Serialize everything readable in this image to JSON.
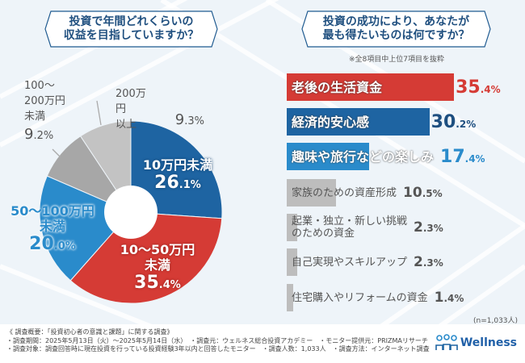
{
  "left_question": {
    "line1": "投資で年間どれくらいの",
    "line2": "収益を目指していますか？"
  },
  "right_question": {
    "line1": "投資の成功により、あなたが",
    "line2": "最も得たいものは何ですか？"
  },
  "right_note": "※全8項目中上位7項目を抜粋",
  "sample_size": "(n=1,033人)",
  "chart_data": [
    {
      "type": "pie",
      "donut": true,
      "start": "12 o'clock",
      "direction": "clockwise",
      "slices": [
        {
          "label_lines": [
            "10万円未満"
          ],
          "value": 26.1,
          "pct_int": "26",
          "pct_dec": ".1%",
          "color": "#1e64a2"
        },
        {
          "label_lines": [
            "10～50万円",
            "未満"
          ],
          "value": 35.4,
          "pct_int": "35",
          "pct_dec": ".4%",
          "color": "#d53b35"
        },
        {
          "label_lines": [
            "50～100万円",
            "未満"
          ],
          "value": 20.0,
          "pct_int": "20",
          "pct_dec": ".0%",
          "color": "#2a8bcb"
        },
        {
          "label_lines": [
            "100～",
            "200万円",
            "未満"
          ],
          "value": 9.2,
          "pct_int": "9",
          "pct_dec": ".2%",
          "color": "#a7a7a7"
        },
        {
          "label_lines": [
            "200万円",
            "以上"
          ],
          "value": 9.3,
          "pct_int": "9",
          "pct_dec": ".3%",
          "color": "#c3c3c3"
        }
      ]
    },
    {
      "type": "bar",
      "orientation": "horizontal",
      "categories": [
        "老後の生活資金",
        "経済的安心感",
        "趣味や旅行などの楽しみ",
        "家族のための資産形成",
        "起業・独立・新しい挑戦のための資金",
        "自己実現やスキルアップ",
        "住宅購入やリフォームの資金"
      ],
      "label_lines": [
        [
          "老後の生活資金"
        ],
        [
          "経済的安心感"
        ],
        [
          "趣味や旅行などの楽しみ"
        ],
        [
          "家族のための資産形成"
        ],
        [
          "起業・独立・新しい挑戦",
          "のための資金"
        ],
        [
          "自己実現やスキルアップ"
        ],
        [
          "住宅購入やリフォームの資金"
        ]
      ],
      "values": [
        35.4,
        30.2,
        17.4,
        10.5,
        2.3,
        2.3,
        1.4
      ],
      "value_int": [
        "35",
        "30",
        "17",
        "10",
        "2",
        "2",
        "1"
      ],
      "value_dec": [
        ".4%",
        ".2%",
        ".4%",
        ".5%",
        ".3%",
        ".3%",
        ".4%"
      ],
      "colors": [
        "#d53b35",
        "#1e64a2",
        "#2a8bcb",
        "#bdbdbd",
        "#bdbdbd",
        "#bdbdbd",
        "#bdbdbd"
      ],
      "value_colors": [
        "#d53b35",
        "#1e4f80",
        "#2a8bcb",
        "#555555",
        "#555555",
        "#555555",
        "#555555"
      ]
    }
  ],
  "footer": {
    "line1": "《 調査概要：「投資初心者の意識と課題」に関する調査》",
    "line2": "・調査期間：2025年5月13日（火）～2025年5月14日（水）　・調査元：ウェルネス総合投資アカデミー　・モニター提供元：PRIZMAリサーチ",
    "line3": "・調査対象：調査回答時に現在投資を行っている投資経験3年以内と回答したモニター　・調査人数：1,033人　・調査方法：インターネット調査"
  },
  "logo": {
    "name": "Wellness",
    "subtitle_top": "幸せな人生を創る",
    "subtitle_bottom": "総合投資アカデミー",
    "color": "#2060a8"
  }
}
